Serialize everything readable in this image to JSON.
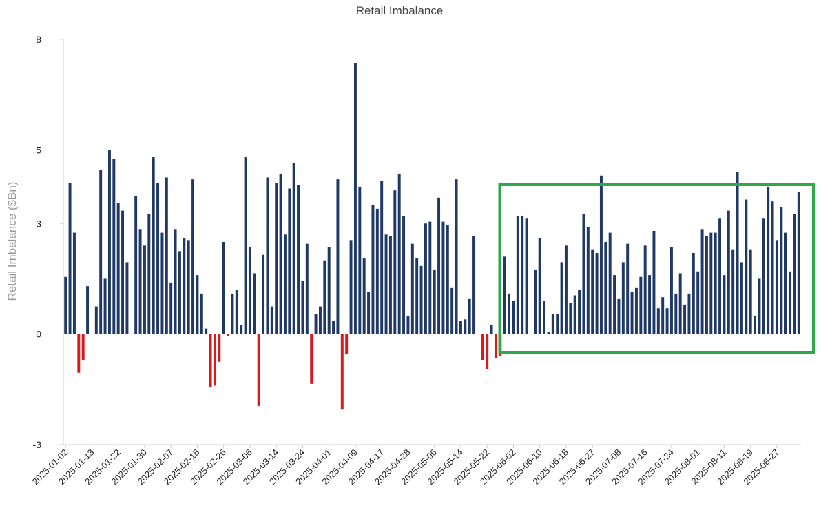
{
  "chart_data": {
    "type": "bar",
    "title": "Retail Imbalance",
    "xlabel": "",
    "ylabel": "Retail Imbalance ($Bn)",
    "ylim": [
      -3,
      8
    ],
    "yticks": [
      "8",
      "5",
      "3",
      "0",
      "-3"
    ],
    "ytick_values": [
      8,
      5,
      3,
      0,
      -3
    ],
    "positive_color": "#1f3864",
    "negative_color": "#d9191c",
    "highlight_color": "#2ea84a",
    "highlight_range": [
      "2025-05-27",
      "2025-08-29"
    ],
    "tick_labels": [
      "2025-01-02",
      "2025-01-13",
      "2025-01-22",
      "2025-01-30",
      "2025-02-07",
      "2025-02-18",
      "2025-02-26",
      "2025-03-06",
      "2025-03-14",
      "2025-03-24",
      "2025-04-01",
      "2025-04-09",
      "2025-04-17",
      "2025-04-28",
      "2025-05-06",
      "2025-05-14",
      "2025-05-22",
      "2025-06-02",
      "2025-06-10",
      "2025-06-18",
      "2025-06-27",
      "2025-07-08",
      "2025-07-16",
      "2025-07-24",
      "2025-08-01",
      "2025-08-11",
      "2025-08-19",
      "2025-08-27"
    ],
    "tick_index_step": 6,
    "values": [
      1.55,
      4.1,
      2.75,
      -1.05,
      -0.7,
      1.3,
      0,
      0.75,
      4.45,
      1.5,
      5.0,
      4.75,
      3.55,
      3.35,
      1.95,
      0,
      3.75,
      2.85,
      2.4,
      3.25,
      4.8,
      4.1,
      2.75,
      4.25,
      1.4,
      2.85,
      2.25,
      2.6,
      2.55,
      4.2,
      1.6,
      1.1,
      0.15,
      -1.45,
      -1.4,
      -0.75,
      2.5,
      -0.05,
      1.1,
      1.2,
      0.25,
      4.8,
      2.35,
      1.65,
      -1.95,
      2.15,
      4.25,
      0.75,
      4.1,
      4.35,
      2.7,
      3.95,
      4.65,
      4.05,
      1.45,
      2.45,
      -1.35,
      0.55,
      0.75,
      2.0,
      2.35,
      0.35,
      4.2,
      -2.05,
      -0.55,
      2.55,
      7.35,
      4.0,
      2.05,
      1.15,
      3.5,
      3.4,
      4.15,
      2.7,
      2.65,
      3.9,
      4.35,
      3.2,
      0.5,
      2.45,
      2.05,
      1.85,
      3.0,
      3.05,
      1.75,
      3.7,
      3.05,
      2.95,
      1.25,
      4.2,
      0.35,
      0.4,
      0.95,
      2.65,
      0,
      -0.7,
      -0.95,
      0.25,
      -0.65,
      -0.6,
      2.1,
      1.1,
      0.9,
      3.2,
      3.2,
      3.15,
      0,
      1.75,
      2.6,
      0.9,
      0.05,
      0.55,
      0.55,
      1.95,
      2.4,
      0.85,
      1.05,
      1.2,
      3.25,
      2.9,
      2.3,
      2.2,
      4.3,
      2.5,
      2.75,
      1.6,
      0.95,
      1.95,
      2.45,
      1.15,
      1.25,
      1.55,
      2.4,
      1.6,
      2.8,
      0.7,
      1.0,
      0.7,
      2.35,
      1.1,
      1.65,
      0.8,
      1.1,
      2.2,
      1.7,
      2.85,
      2.65,
      2.75,
      2.75,
      3.15,
      1.6,
      3.35,
      2.3,
      4.4,
      1.95,
      3.65,
      2.3,
      0.5,
      1.5,
      3.15,
      4.0,
      3.6,
      2.55,
      3.45,
      2.75,
      1.7,
      3.25,
      3.85
    ]
  }
}
